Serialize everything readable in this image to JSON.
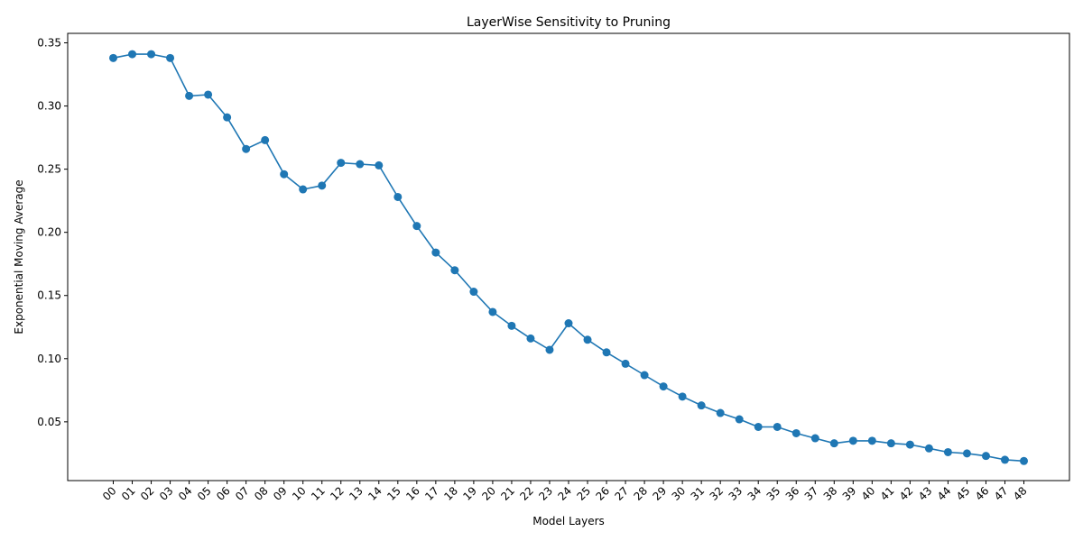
{
  "chart_data": {
    "type": "line",
    "title": "LayerWise Sensitivity to Pruning",
    "xlabel": "Model Layers",
    "ylabel": "Exponential Moving Average",
    "categories": [
      "00",
      "01",
      "02",
      "03",
      "04",
      "05",
      "06",
      "07",
      "08",
      "09",
      "10",
      "11",
      "12",
      "13",
      "14",
      "15",
      "16",
      "17",
      "18",
      "19",
      "20",
      "21",
      "22",
      "23",
      "24",
      "25",
      "26",
      "27",
      "28",
      "29",
      "30",
      "31",
      "32",
      "33",
      "34",
      "35",
      "36",
      "37",
      "38",
      "39",
      "40",
      "41",
      "42",
      "43",
      "44",
      "45",
      "46",
      "47",
      "48"
    ],
    "series": [
      {
        "values": [
          0.338,
          0.341,
          0.341,
          0.338,
          0.308,
          0.309,
          0.291,
          0.266,
          0.273,
          0.246,
          0.234,
          0.237,
          0.255,
          0.254,
          0.253,
          0.228,
          0.205,
          0.184,
          0.17,
          0.153,
          0.137,
          0.126,
          0.116,
          0.107,
          0.128,
          0.115,
          0.105,
          0.096,
          0.087,
          0.078,
          0.07,
          0.063,
          0.057,
          0.052,
          0.046,
          0.046,
          0.041,
          0.037,
          0.033,
          0.035,
          0.035,
          0.033,
          0.032,
          0.029,
          0.026,
          0.025,
          0.023,
          0.02,
          0.019
        ],
        "color": "#1f77b4"
      }
    ],
    "yticks": [
      "0.05",
      "0.10",
      "0.15",
      "0.20",
      "0.25",
      "0.30",
      "0.35"
    ],
    "ylim": [
      0.0035,
      0.3575
    ],
    "grid": false,
    "marker": "circle",
    "x_tick_rotation": "45deg"
  }
}
